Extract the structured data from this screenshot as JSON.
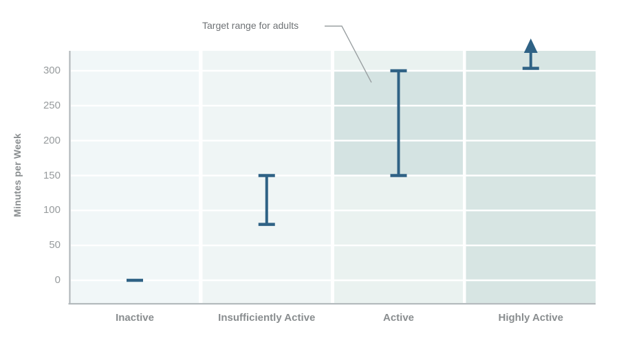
{
  "chart_data": {
    "type": "range-bar",
    "title": "",
    "ylabel": "Minutes per Week",
    "xlabel": "",
    "categories": [
      "Inactive",
      "Insufficiently Active",
      "Active",
      "Highly Active"
    ],
    "yticks": [
      0,
      50,
      100,
      150,
      200,
      250,
      300
    ],
    "ylim": [
      -33,
      330
    ],
    "grid": "horizontal-white",
    "legend": "none",
    "ranges": [
      {
        "category": "Inactive",
        "low": 0,
        "high": 0,
        "style": "dash"
      },
      {
        "category": "Insufficiently Active",
        "low": 80,
        "high": 150,
        "style": "range"
      },
      {
        "category": "Active",
        "low": 150,
        "high": 300,
        "style": "range",
        "highlight_box": true
      },
      {
        "category": "Highly Active",
        "low": 300,
        "high": null,
        "style": "open-arrow"
      }
    ],
    "annotation": {
      "text": "Target range for adults",
      "points_to": "Active target box (150-300)"
    },
    "colors": {
      "bar": "#2f6285",
      "band_colors": [
        "#f1f7f8",
        "#eff5f5",
        "#eaf2f0",
        "#d7e5e3"
      ],
      "highlight_box": "#d4e3e2",
      "gridline": "#ffffff",
      "spine": "#b0b7ba",
      "tick_text": "#979b9d",
      "category_text": "#898d8f",
      "annotation_text": "#6e7275",
      "leader_line": "#9aa0a2"
    }
  }
}
